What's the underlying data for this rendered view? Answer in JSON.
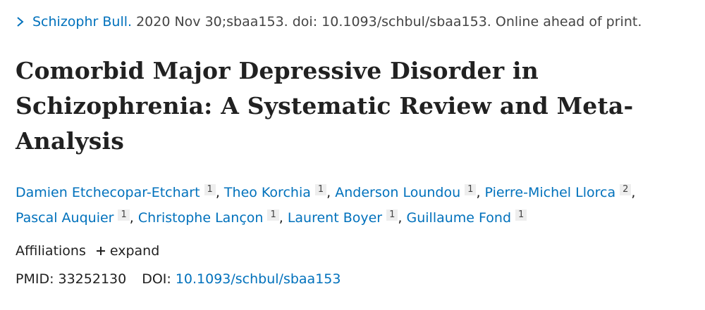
{
  "citation": {
    "journal": "Schizophr Bull.",
    "details": "2020 Nov 30;sbaa153. doi: 10.1093/schbul/sbaa153. Online ahead of print."
  },
  "title": "Comorbid Major Depressive Disorder in Schizophrenia: A Systematic Review and Meta-Analysis",
  "authors": {
    "separator": ",",
    "list": [
      {
        "name": "Damien Etchecopar-Etchart",
        "affiliation": "1"
      },
      {
        "name": "Theo Korchia",
        "affiliation": "1"
      },
      {
        "name": "Anderson Loundou",
        "affiliation": "1"
      },
      {
        "name": "Pierre-Michel Llorca",
        "affiliation": "2"
      },
      {
        "name": "Pascal Auquier",
        "affiliation": "1"
      },
      {
        "name": "Christophe Lançon",
        "affiliation": "1"
      },
      {
        "name": "Laurent Boyer",
        "affiliation": "1"
      },
      {
        "name": "Guillaume Fond",
        "affiliation": "1"
      }
    ]
  },
  "affiliations": {
    "label": "Affiliations",
    "toggle": "expand"
  },
  "identifiers": {
    "pmid_label": "PMID:",
    "pmid": "33252130",
    "doi_label": "DOI:",
    "doi": "10.1093/schbul/sbaa153"
  }
}
